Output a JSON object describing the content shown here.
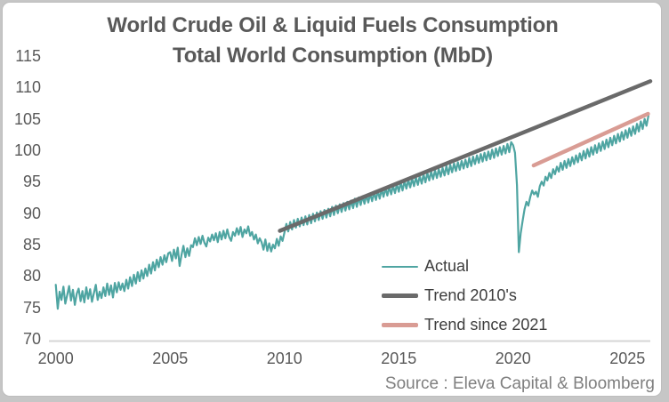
{
  "chart": {
    "title_line1": "World Crude Oil & Liquid Fuels Consumption",
    "title_line2": "Total World Consumption (MbD)",
    "source": "Source : Eleva Capital & Bloomberg"
  },
  "chart_data": {
    "type": "line",
    "title": "World Crude Oil & Liquid Fuels Consumption",
    "subtitle": "Total World Consumption (MbD)",
    "xlabel": "",
    "ylabel": "",
    "xlim": [
      1999.7,
      2026.0
    ],
    "ylim": [
      70,
      115
    ],
    "xticks": [
      2000,
      2005,
      2010,
      2015,
      2020,
      2025
    ],
    "yticks": [
      115,
      110,
      105,
      100,
      95,
      90,
      85,
      80,
      75,
      70
    ],
    "grid": false,
    "legend_position": "center-right",
    "axis_color": "#d6d6d6",
    "series": [
      {
        "name": "Actual",
        "color": "#4fa5a2",
        "stroke_width": 2.2,
        "kind": "monthly",
        "x_start": 2000,
        "x_step_years": 0.0833333,
        "values": [
          78.6,
          74.8,
          77.5,
          76.2,
          78.3,
          75.6,
          77.0,
          78.4,
          76.1,
          77.8,
          75.4,
          77.2,
          78.0,
          76.0,
          77.6,
          75.8,
          78.2,
          76.4,
          77.9,
          75.9,
          77.3,
          78.6,
          76.2,
          77.5,
          76.5,
          78.2,
          76.8,
          78.8,
          77.0,
          78.5,
          76.6,
          78.9,
          77.4,
          79.0,
          77.8,
          78.8,
          77.6,
          79.4,
          78.0,
          79.8,
          78.4,
          80.2,
          78.8,
          80.6,
          79.2,
          80.9,
          79.6,
          81.2,
          80.0,
          81.8,
          80.4,
          82.2,
          80.9,
          82.6,
          81.4,
          83.0,
          81.8,
          83.3,
          82.2,
          83.6,
          83.8,
          82.4,
          84.2,
          82.8,
          84.5,
          81.6,
          83.4,
          84.8,
          83.0,
          84.4,
          83.2,
          84.9,
          84.6,
          86.0,
          84.9,
          86.2,
          85.1,
          86.4,
          85.3,
          84.7,
          86.1,
          85.5,
          86.6,
          85.7,
          86.8,
          85.4,
          87.0,
          85.8,
          87.2,
          86.0,
          87.4,
          86.2,
          85.6,
          87.0,
          86.4,
          87.6,
          86.6,
          87.8,
          86.2,
          87.4,
          86.8,
          87.9,
          86.4,
          87.0,
          85.8,
          86.6,
          85.2,
          86.0,
          85.4,
          84.2,
          85.8,
          84.0,
          85.2,
          83.9,
          85.0,
          84.4,
          85.9,
          84.8,
          86.3,
          85.6,
          86.9,
          88.3,
          87.1,
          88.6,
          87.4,
          88.9,
          87.7,
          89.1,
          87.9,
          89.3,
          88.1,
          89.5,
          88.2,
          89.7,
          88.4,
          89.9,
          88.7,
          90.1,
          88.9,
          90.3,
          89.1,
          90.5,
          89.3,
          90.7,
          89.5,
          91.0,
          89.7,
          91.2,
          90.0,
          91.4,
          90.2,
          91.6,
          90.4,
          91.8,
          90.6,
          92.0,
          90.8,
          92.3,
          91.0,
          92.5,
          91.3,
          92.7,
          91.5,
          92.9,
          91.7,
          93.1,
          91.9,
          93.3,
          92.1,
          93.6,
          92.3,
          93.8,
          92.6,
          94.0,
          92.8,
          94.2,
          93.0,
          94.4,
          93.2,
          94.6,
          93.4,
          94.9,
          93.6,
          95.1,
          93.9,
          95.3,
          94.1,
          95.5,
          94.3,
          95.7,
          94.5,
          95.9,
          94.7,
          96.2,
          94.9,
          96.4,
          95.2,
          96.6,
          95.4,
          96.8,
          95.6,
          97.0,
          95.8,
          97.2,
          96.0,
          97.5,
          96.2,
          97.7,
          96.5,
          97.9,
          96.7,
          98.1,
          96.9,
          98.3,
          97.1,
          98.5,
          97.3,
          98.8,
          97.5,
          99.0,
          97.8,
          99.2,
          98.0,
          99.4,
          98.2,
          99.6,
          98.4,
          99.8,
          98.6,
          100.1,
          98.8,
          100.3,
          99.1,
          100.5,
          99.3,
          100.7,
          99.5,
          101.0,
          99.7,
          101.3,
          100.8,
          99.6,
          94.5,
          83.8,
          86.8,
          88.8,
          90.6,
          91.8,
          91.2,
          92.6,
          93.6,
          93.0,
          93.4,
          92.6,
          94.3,
          95.0,
          94.4,
          95.8,
          95.2,
          96.4,
          95.6,
          97.0,
          96.2,
          97.4,
          96.6,
          98.0,
          96.9,
          98.3,
          97.2,
          98.6,
          97.5,
          98.9,
          97.8,
          99.2,
          98.1,
          99.5,
          98.4,
          99.9,
          98.7,
          100.2,
          99.0,
          100.5,
          99.3,
          100.8,
          99.6,
          101.1,
          99.9,
          101.4,
          100.2,
          101.7,
          100.5,
          102.0,
          100.8,
          102.3,
          101.1,
          102.6,
          101.4,
          102.9,
          101.7,
          103.2,
          102.0,
          103.5,
          102.3,
          103.8,
          102.6,
          104.2,
          103.0,
          104.6,
          103.4,
          105.0,
          103.9,
          105.5
        ]
      },
      {
        "name": "Trend 2010's",
        "color": "#6a6a6a",
        "stroke_width": 4.5,
        "kind": "segment",
        "x": [
          2009.8,
          2026.0
        ],
        "y": [
          87.2,
          111.0
        ]
      },
      {
        "name": "Trend since 2021",
        "color": "#d99c94",
        "stroke_width": 4.5,
        "kind": "segment",
        "x": [
          2020.9,
          2025.9
        ],
        "y": [
          97.6,
          105.8
        ]
      }
    ]
  }
}
